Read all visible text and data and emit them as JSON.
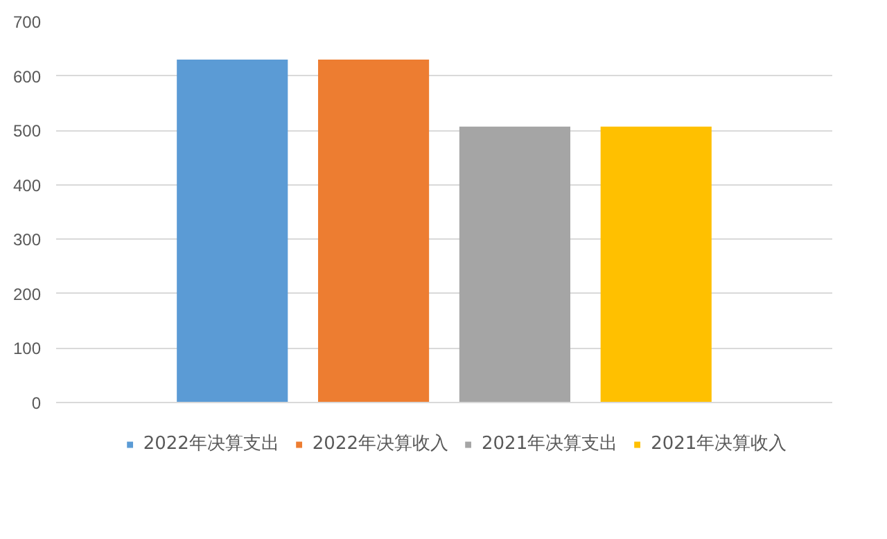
{
  "chart_data": {
    "type": "bar",
    "categories": [
      null
    ],
    "series": [
      {
        "name": "2022年决算支出",
        "color": "#5b9bd5",
        "values": [
          630
        ]
      },
      {
        "name": "2022年决算收入",
        "color": "#ed7d31",
        "values": [
          630
        ]
      },
      {
        "name": "2021年决算支出",
        "color": "#a5a5a5",
        "values": [
          507
        ]
      },
      {
        "name": "2021年决算收入",
        "color": "#ffc000",
        "values": [
          507
        ]
      }
    ],
    "ylim": [
      0,
      700
    ],
    "yticks": [
      0,
      100,
      200,
      300,
      400,
      500,
      600,
      700
    ],
    "grid": "y",
    "legend": "bottom"
  }
}
